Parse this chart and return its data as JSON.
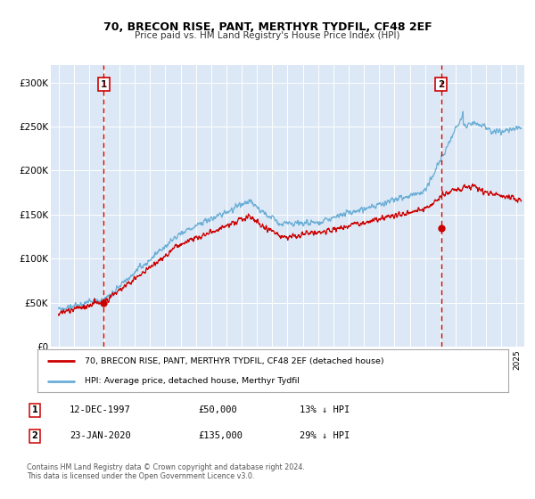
{
  "title": "70, BRECON RISE, PANT, MERTHYR TYDFIL, CF48 2EF",
  "subtitle": "Price paid vs. HM Land Registry's House Price Index (HPI)",
  "legend_line1": "70, BRECON RISE, PANT, MERTHYR TYDFIL, CF48 2EF (detached house)",
  "legend_line2": "HPI: Average price, detached house, Merthyr Tydfil",
  "annotation1_label": "1",
  "annotation1_date": "12-DEC-1997",
  "annotation1_price": "£50,000",
  "annotation1_hpi": "13% ↓ HPI",
  "annotation2_label": "2",
  "annotation2_date": "23-JAN-2020",
  "annotation2_price": "£135,000",
  "annotation2_hpi": "29% ↓ HPI",
  "footnote1": "Contains HM Land Registry data © Crown copyright and database right 2024.",
  "footnote2": "This data is licensed under the Open Government Licence v3.0.",
  "plot_bg_color": "#dce8f5",
  "hpi_line_color": "#6baed6",
  "price_line_color": "#cc0000",
  "vline_color": "#cc0000",
  "marker_color": "#cc0000",
  "grid_color": "#ffffff",
  "ylim": [
    0,
    320000
  ],
  "yticks": [
    0,
    50000,
    100000,
    150000,
    200000,
    250000,
    300000
  ],
  "ytick_labels": [
    "£0",
    "£50K",
    "£100K",
    "£150K",
    "£200K",
    "£250K",
    "£300K"
  ],
  "xstart": 1994.5,
  "xend": 2025.5,
  "sale1_year": 1997.95,
  "sale2_year": 2020.06,
  "sale1_price": 50000,
  "sale2_price": 135000
}
